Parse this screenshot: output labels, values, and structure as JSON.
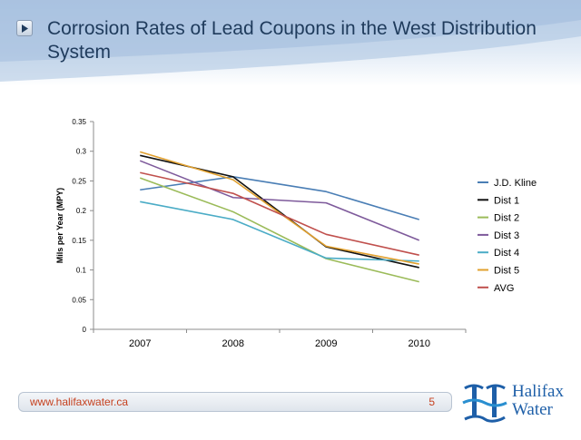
{
  "slide": {
    "title": "Corrosion Rates of Lead Coupons  in the West Distribution System",
    "footer_url": "www.halifaxwater.ca",
    "page_number": "5",
    "logo_line1": "Halifax",
    "logo_line2": "Water"
  },
  "chart_data": {
    "type": "line",
    "title": "",
    "xlabel": "",
    "ylabel": "Mils per Year (MPY)",
    "categories": [
      "2007",
      "2008",
      "2009",
      "2010"
    ],
    "ylim": [
      0,
      0.35
    ],
    "yticks": [
      "0",
      "0.05",
      "0.1",
      "0.15",
      "0.2",
      "0.25",
      "0.3",
      "0.35"
    ],
    "grid": false,
    "legend_position": "right",
    "series": [
      {
        "name": "J.D. Kline",
        "color": "#4a7eb5",
        "values": [
          0.235,
          0.257,
          0.232,
          0.185
        ]
      },
      {
        "name": "Dist 1",
        "color": "#111111",
        "values": [
          0.293,
          0.257,
          0.139,
          0.104
        ]
      },
      {
        "name": "Dist 2",
        "color": "#9bbb59",
        "values": [
          0.255,
          0.198,
          0.119,
          0.08
        ]
      },
      {
        "name": "Dist 3",
        "color": "#7e5a9b",
        "values": [
          0.284,
          0.222,
          0.213,
          0.15
        ]
      },
      {
        "name": "Dist 4",
        "color": "#4bacc6",
        "values": [
          0.215,
          0.185,
          0.12,
          0.115
        ]
      },
      {
        "name": "Dist 5",
        "color": "#e1a02e",
        "values": [
          0.299,
          0.252,
          0.14,
          0.11
        ]
      },
      {
        "name": "AVG",
        "color": "#c0504d",
        "values": [
          0.264,
          0.229,
          0.16,
          0.125
        ]
      }
    ]
  }
}
